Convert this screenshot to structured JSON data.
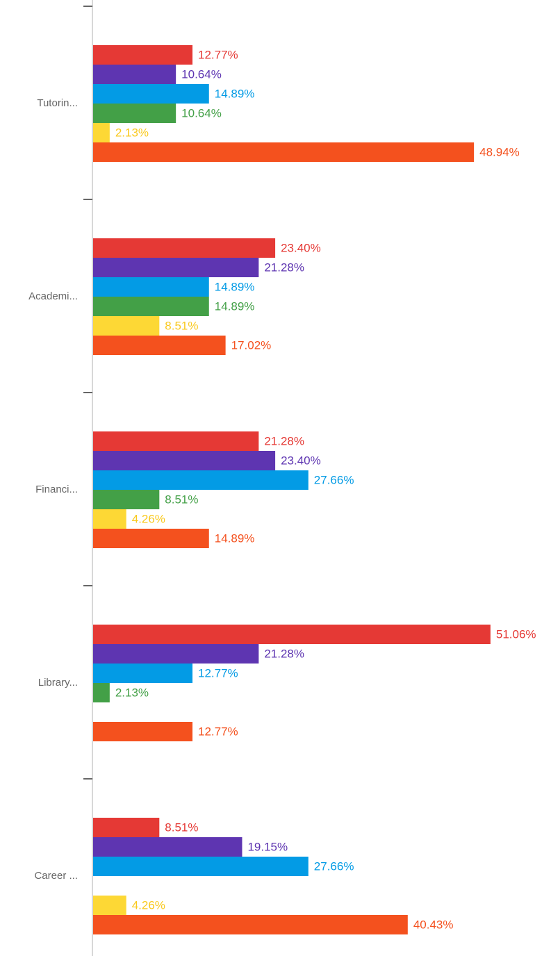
{
  "chart_data": {
    "type": "bar",
    "orientation": "horizontal",
    "categories": [
      "Tutorin...",
      "Academi...",
      "Financi...",
      "Library...",
      "Career ..."
    ],
    "series": [
      {
        "color": "#e53935",
        "values": [
          12.77,
          23.4,
          21.28,
          51.06,
          8.51
        ],
        "value_labels": [
          "12.77%",
          "23.40%",
          "21.28%",
          "51.06%",
          "8.51%"
        ]
      },
      {
        "color": "#5e35b1",
        "values": [
          10.64,
          21.28,
          23.4,
          21.28,
          19.15
        ],
        "value_labels": [
          "10.64%",
          "21.28%",
          "23.40%",
          "21.28%",
          "19.15%"
        ]
      },
      {
        "color": "#039be5",
        "values": [
          14.89,
          14.89,
          27.66,
          12.77,
          27.66
        ],
        "value_labels": [
          "14.89%",
          "14.89%",
          "27.66%",
          "12.77%",
          "27.66%"
        ]
      },
      {
        "color": "#43a047",
        "values": [
          10.64,
          14.89,
          8.51,
          2.13,
          null
        ],
        "value_labels": [
          "10.64%",
          "14.89%",
          "8.51%",
          "2.13%",
          null
        ]
      },
      {
        "color": "#fdd835",
        "values": [
          2.13,
          8.51,
          4.26,
          null,
          4.26
        ],
        "value_labels": [
          "2.13%",
          "8.51%",
          "4.26%",
          null,
          "4.26%"
        ]
      },
      {
        "color": "#f4511e",
        "values": [
          48.94,
          17.02,
          14.89,
          12.77,
          40.43
        ],
        "value_labels": [
          "48.94%",
          "17.02%",
          "14.89%",
          "12.77%",
          "40.43%"
        ]
      }
    ]
  }
}
